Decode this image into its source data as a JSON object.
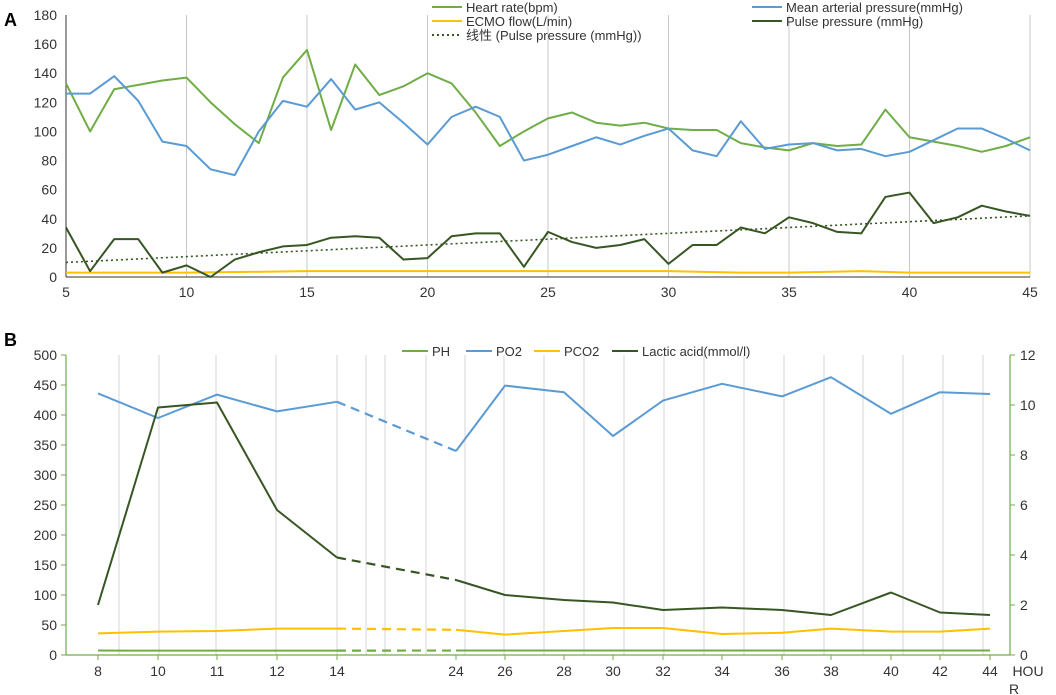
{
  "chart_data": [
    {
      "panel": "A",
      "type": "line",
      "x_ticks": [
        5,
        10,
        15,
        20,
        25,
        30,
        35,
        40,
        45
      ],
      "xlim": [
        5,
        45
      ],
      "ylim": [
        0,
        180
      ],
      "y_ticks": [
        0,
        20,
        40,
        60,
        80,
        100,
        120,
        140,
        160,
        180
      ],
      "grid": "vertical",
      "legend": [
        {
          "name": "Heart rate(bpm)",
          "color": "#70ad47",
          "style": "solid"
        },
        {
          "name": "Mean arterial pressure(mmHg)",
          "color": "#5b9bd5",
          "style": "solid"
        },
        {
          "name": "ECMO flow(L/min)",
          "color": "#ffc000",
          "style": "solid"
        },
        {
          "name": "Pulse pressure (mmHg)",
          "color": "#375623",
          "style": "solid"
        },
        {
          "name": "线性 (Pulse pressure (mmHg))",
          "color": "#375623",
          "style": "dotted"
        }
      ],
      "series": [
        {
          "name": "Heart rate(bpm)",
          "color": "#70ad47",
          "x": [
            5,
            6,
            7,
            8,
            9,
            10,
            11,
            12,
            13,
            14,
            15,
            16,
            17,
            18,
            19,
            20,
            21,
            22,
            23,
            24,
            25,
            26,
            27,
            28,
            29,
            30,
            31,
            32,
            33,
            34,
            35,
            36,
            37,
            38,
            39,
            40,
            41,
            42,
            43,
            44,
            45
          ],
          "values": [
            133,
            100,
            129,
            132,
            135,
            137,
            120,
            105,
            92,
            137,
            156,
            101,
            146,
            125,
            131,
            140,
            133,
            113,
            90,
            100,
            109,
            113,
            106,
            104,
            106,
            102,
            101,
            101,
            92,
            89,
            87,
            92,
            90,
            91,
            115,
            96,
            93,
            90,
            86,
            90,
            96
          ]
        },
        {
          "name": "Mean arterial pressure(mmHg)",
          "color": "#5b9bd5",
          "x": [
            5,
            6,
            7,
            8,
            9,
            10,
            11,
            12,
            13,
            14,
            15,
            16,
            17,
            18,
            19,
            20,
            21,
            22,
            23,
            24,
            25,
            26,
            27,
            28,
            29,
            30,
            31,
            32,
            33,
            34,
            35,
            36,
            37,
            38,
            39,
            40,
            41,
            42,
            43,
            44,
            45
          ],
          "values": [
            126,
            126,
            138,
            121,
            93,
            90,
            74,
            70,
            100,
            121,
            117,
            136,
            115,
            120,
            106,
            91,
            110,
            117,
            110,
            80,
            84,
            90,
            96,
            91,
            97,
            102,
            87,
            83,
            107,
            88,
            91,
            92,
            87,
            88,
            83,
            86,
            94,
            102,
            102,
            95,
            87
          ]
        },
        {
          "name": "ECMO flow(L/min)",
          "color": "#ffc000",
          "x": [
            5,
            10,
            15,
            20,
            25,
            30,
            33,
            35,
            38,
            40,
            45
          ],
          "values": [
            3,
            3,
            4,
            4,
            4,
            4,
            3,
            3,
            4,
            3,
            3
          ]
        },
        {
          "name": "Pulse pressure (mmHg)",
          "color": "#375623",
          "x": [
            5,
            6,
            7,
            8,
            9,
            10,
            11,
            12,
            13,
            14,
            15,
            16,
            17,
            18,
            19,
            20,
            21,
            22,
            23,
            24,
            25,
            26,
            27,
            28,
            29,
            30,
            31,
            32,
            33,
            34,
            35,
            36,
            37,
            38,
            39,
            40,
            41,
            42,
            43,
            44,
            45
          ],
          "values": [
            34,
            4,
            26,
            26,
            3,
            8,
            0,
            12,
            17,
            21,
            22,
            27,
            28,
            27,
            12,
            13,
            28,
            30,
            30,
            7,
            31,
            24,
            20,
            22,
            26,
            9,
            22,
            22,
            34,
            30,
            41,
            37,
            31,
            30,
            55,
            58,
            37,
            41,
            49,
            45,
            42
          ]
        }
      ],
      "trendline": {
        "name": "线性 (Pulse pressure (mmHg))",
        "color": "#375623",
        "x": [
          5,
          45
        ],
        "values": [
          10,
          42
        ]
      }
    },
    {
      "panel": "B",
      "type": "line",
      "x_ticks": [
        "8",
        "10",
        "11",
        "12",
        "14",
        "24",
        "26",
        "28",
        "30",
        "32",
        "34",
        "36",
        "38",
        "40",
        "42",
        "44"
      ],
      "xlabel": "HOUR",
      "ylim": [
        0,
        500
      ],
      "y_ticks": [
        0,
        50,
        100,
        150,
        200,
        250,
        300,
        350,
        400,
        450,
        500
      ],
      "y2lim": [
        0,
        12
      ],
      "y2_ticks": [
        0,
        2,
        4,
        6,
        8,
        10,
        12
      ],
      "grid": "vertical",
      "legend": [
        {
          "name": "PH",
          "color": "#70ad47"
        },
        {
          "name": "PO2",
          "color": "#5b9bd5"
        },
        {
          "name": "PCO2",
          "color": "#ffc000"
        },
        {
          "name": "Lactic acid(mmol/l)",
          "color": "#375623"
        }
      ],
      "series": [
        {
          "name": "PH",
          "color": "#70ad47",
          "axis": "left",
          "values": [
            7.4,
            7.3,
            7.2,
            7.3,
            7.3,
            7.4,
            7.4,
            7.4,
            7.4,
            7.4,
            7.4,
            7.4,
            7.4,
            7.4,
            7.4,
            7.4
          ]
        },
        {
          "name": "PO2",
          "color": "#5b9bd5",
          "axis": "left",
          "values": [
            436,
            395,
            434,
            406,
            422,
            340,
            449,
            438,
            365,
            424,
            452,
            431,
            463,
            402,
            438,
            435
          ]
        },
        {
          "name": "PCO2",
          "color": "#ffc000",
          "axis": "left",
          "values": [
            36,
            39,
            40,
            44,
            44,
            42,
            34,
            40,
            45,
            45,
            35,
            37,
            44,
            39,
            39,
            44
          ]
        },
        {
          "name": "Lactic acid(mmol/l)",
          "color": "#375623",
          "axis": "right",
          "values": [
            2.0,
            9.9,
            10.1,
            5.8,
            3.9,
            3.0,
            2.4,
            2.2,
            2.1,
            1.8,
            1.9,
            1.8,
            1.6,
            2.5,
            1.7,
            1.6
          ]
        }
      ],
      "gap_between": [
        "14",
        "24"
      ]
    }
  ]
}
